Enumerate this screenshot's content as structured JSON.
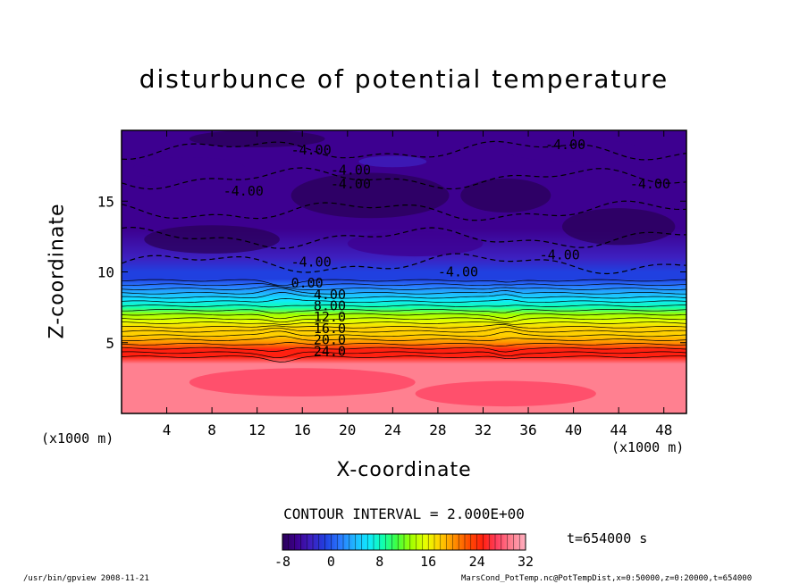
{
  "chart_data": {
    "type": "heatmap",
    "title": "disturbunce of potential temperature",
    "xlabel": "X-coordinate",
    "ylabel": "Z-coordinate",
    "x_unit": "(x1000 m)",
    "x_ticks": [
      4,
      8,
      12,
      16,
      20,
      24,
      28,
      32,
      36,
      40,
      44,
      48
    ],
    "y_ticks": [
      5,
      10,
      15
    ],
    "xlim": [
      0,
      50
    ],
    "ylim": [
      0,
      20
    ],
    "profile_z_km": [
      0,
      3.5,
      4.0,
      4.5,
      5.0,
      5.5,
      6.0,
      6.5,
      7.0,
      7.5,
      8.0,
      8.5,
      9.0,
      9.5,
      10.0,
      11.0,
      13.0,
      15.0,
      17.0,
      18.5,
      20.0
    ],
    "profile_value": [
      30,
      30,
      26,
      24,
      21,
      19,
      17,
      14.5,
      12,
      9.5,
      7,
      4.5,
      2,
      0,
      -2,
      -4,
      -5,
      -6,
      -5,
      -6,
      -6
    ],
    "contour_labels": [
      {
        "text": "-4.00",
        "x": 15.0,
        "z": 18.6
      },
      {
        "text": "-4.00",
        "x": 18.5,
        "z": 17.2
      },
      {
        "text": "-4.00",
        "x": 18.5,
        "z": 16.2
      },
      {
        "text": "-4.00",
        "x": 9.0,
        "z": 15.7
      },
      {
        "text": "-4.00",
        "x": 37.5,
        "z": 19.0
      },
      {
        "text": "-4.00",
        "x": 45.0,
        "z": 16.2
      },
      {
        "text": "-4.00",
        "x": 15.0,
        "z": 10.7
      },
      {
        "text": "-4.00",
        "x": 28.0,
        "z": 10.0
      },
      {
        "text": "-4.00",
        "x": 37.0,
        "z": 11.2
      },
      {
        "text": "0.00",
        "x": 15.0,
        "z": 9.2
      },
      {
        "text": "4.00",
        "x": 17.0,
        "z": 8.4
      },
      {
        "text": "8.00",
        "x": 17.0,
        "z": 7.6
      },
      {
        "text": "12.0",
        "x": 17.0,
        "z": 6.8
      },
      {
        "text": "16.0",
        "x": 17.0,
        "z": 6.0
      },
      {
        "text": "20.0",
        "x": 17.0,
        "z": 5.2
      },
      {
        "text": "24.0",
        "x": 17.0,
        "z": 4.4
      }
    ],
    "colorbar": {
      "title": "CONTOUR INTERVAL = 2.000E+00",
      "range": [
        -8,
        32
      ],
      "tick_labels": [
        "-8",
        "0",
        "8",
        "16",
        "24",
        "32"
      ],
      "colors": [
        "#2a0058",
        "#3d0090",
        "#3d20c0",
        "#2040e0",
        "#2a78ff",
        "#20b4ff",
        "#10e8ff",
        "#10ffb0",
        "#40ff40",
        "#a0ff00",
        "#e8ff00",
        "#ffd000",
        "#ff9000",
        "#ff5000",
        "#ff2010",
        "#ff4060",
        "#ff8090",
        "#ffb0c0"
      ]
    },
    "time_label": "t=654000 s"
  },
  "footer": {
    "left": "/usr/bin/gpview  2008-11-21",
    "right": "MarsCond_PotTemp.nc@PotTempDist,x=0:50000,z=0:20000,t=654000"
  }
}
